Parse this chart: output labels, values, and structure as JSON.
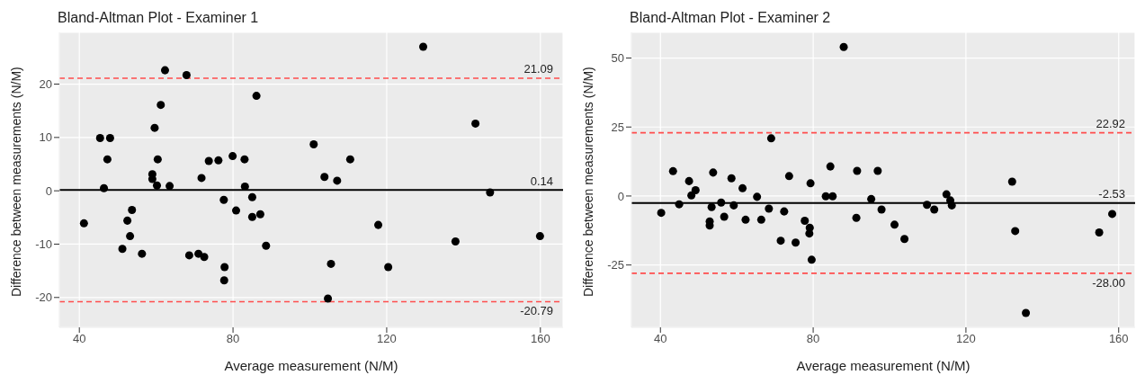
{
  "chart_data": [
    {
      "type": "scatter",
      "title": "Bland-Altman Plot - Examiner 1",
      "xlabel": "Average measurement (N/M)",
      "ylabel": "Difference between measurements (N/M)",
      "xlim": [
        34.8,
        165.9
      ],
      "xticks": [
        40,
        80,
        120,
        160
      ],
      "ylim": [
        -25.6,
        29.7
      ],
      "yticks": [
        -20,
        -10,
        0,
        10,
        20
      ],
      "grid": true,
      "marker": "circle",
      "legend": false,
      "series": [
        {
          "color": "#000000",
          "x": [
            41.2,
            45.4,
            48.0,
            47.3,
            46.4,
            51.2,
            52.5,
            53.2,
            53.7,
            56.3,
            59.0,
            59.0,
            59.6,
            60.2,
            60.4,
            61.2,
            62.3,
            63.5,
            67.9,
            68.6,
            71.0,
            71.8,
            72.5,
            73.7,
            76.2,
            77.6,
            77.8,
            77.7,
            79.9,
            80.8,
            83.0,
            83.1,
            85.0,
            85.0,
            86.1,
            87.1,
            88.6,
            101.0,
            103.8,
            107.1,
            105.5,
            104.7,
            110.5,
            117.8,
            120.4,
            129.5,
            137.9,
            143.1,
            146.9,
            159.9
          ],
          "values": [
            -6.1,
            9.9,
            9.9,
            5.9,
            0.5,
            -10.9,
            -5.6,
            -8.5,
            -3.6,
            -11.8,
            3.1,
            2.2,
            11.8,
            1.0,
            5.9,
            16.1,
            22.6,
            0.9,
            21.7,
            -12.1,
            -11.8,
            2.4,
            -12.4,
            5.6,
            5.7,
            -1.7,
            -14.3,
            -16.8,
            6.5,
            -3.7,
            5.9,
            0.8,
            -1.2,
            -4.9,
            17.8,
            -4.4,
            -10.3,
            8.7,
            2.6,
            1.9,
            -13.7,
            -20.2,
            5.9,
            -6.4,
            -14.3,
            27.0,
            -9.5,
            12.6,
            -0.3,
            -8.5
          ]
        }
      ],
      "ref_lines": [
        {
          "axis": "y",
          "value": 21.09,
          "label": "21.09",
          "color": "#ff4d4d",
          "line_style": "dashed"
        },
        {
          "axis": "y",
          "value": 0.14,
          "label": "0.14",
          "color": "#000000",
          "line_style": "solid"
        },
        {
          "axis": "y",
          "value": -20.79,
          "label": "-20.79",
          "color": "#ff4d4d",
          "line_style": "dashed"
        }
      ]
    },
    {
      "type": "scatter",
      "title": "Bland-Altman Plot - Examiner 2",
      "xlabel": "Average measurement (N/M)",
      "ylabel": "Difference between measurements (N/M)",
      "xlim": [
        32.4,
        164.3
      ],
      "xticks": [
        40,
        80,
        120,
        160
      ],
      "ylim": [
        -47.6,
        59.3
      ],
      "yticks": [
        -25,
        0,
        25,
        50
      ],
      "grid": true,
      "marker": "circle",
      "legend": false,
      "series": [
        {
          "color": "#000000",
          "x": [
            40.2,
            43.3,
            44.9,
            47.5,
            48.1,
            49.2,
            52.9,
            52.9,
            53.4,
            53.8,
            55.9,
            56.7,
            58.6,
            59.2,
            61.5,
            62.3,
            65.3,
            66.4,
            68.4,
            69.0,
            71.5,
            72.4,
            73.7,
            75.4,
            77.8,
            79.1,
            79.0,
            79.3,
            79.6,
            83.3,
            84.5,
            85.1,
            88.0,
            91.3,
            91.5,
            95.2,
            96.9,
            97.9,
            101.3,
            103.9,
            109.8,
            111.7,
            114.9,
            115.9,
            116.3,
            132.1,
            132.9,
            135.7,
            154.9,
            158.3
          ],
          "values": [
            -6.1,
            9.0,
            -3.0,
            5.4,
            0.2,
            2.1,
            -9.2,
            -10.7,
            -4.0,
            8.5,
            -2.4,
            -7.5,
            6.4,
            -3.4,
            2.8,
            -8.6,
            -0.3,
            -8.6,
            -4.6,
            20.9,
            -16.2,
            -5.6,
            7.2,
            -16.9,
            -9.0,
            -11.5,
            -13.6,
            4.6,
            -23.1,
            -0.1,
            10.7,
            -0.1,
            54.0,
            -7.9,
            9.1,
            -1.1,
            9.1,
            -4.9,
            -10.4,
            -15.6,
            -3.2,
            -4.9,
            0.6,
            -1.6,
            -3.4,
            5.2,
            -12.7,
            -42.4,
            -13.2,
            -6.5
          ]
        }
      ],
      "ref_lines": [
        {
          "axis": "y",
          "value": 22.92,
          "label": "22.92",
          "color": "#ff4d4d",
          "line_style": "dashed"
        },
        {
          "axis": "y",
          "value": -2.53,
          "label": "-2.53",
          "color": "#000000",
          "line_style": "solid"
        },
        {
          "axis": "y",
          "value": -28.0,
          "label": "-28.00",
          "color": "#ff4d4d",
          "line_style": "dashed"
        }
      ]
    }
  ]
}
